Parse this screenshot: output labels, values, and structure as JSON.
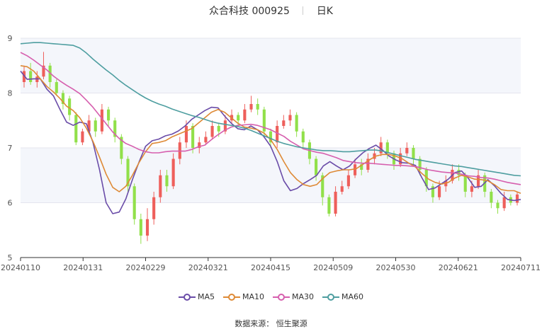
{
  "header": {
    "title": "众合科技 000925",
    "period": "日K"
  },
  "source": {
    "label": "数据来源：",
    "name": "恒生聚源"
  },
  "colors": {
    "up": "#ee5f5b",
    "down": "#91e04a",
    "ma5": "#6a4ca8",
    "ma10": "#de8a36",
    "ma30": "#d65fae",
    "ma60": "#4e9ea0",
    "band": "#f4f6fb",
    "grid": "#e5e5ee"
  },
  "chart_data": {
    "type": "candlestick",
    "title": "众合科技 000925",
    "ylim": [
      5,
      9
    ],
    "y_ticks": [
      "5",
      "6",
      "7",
      "8",
      "9"
    ],
    "x_ticks": [
      "20240110",
      "20240131",
      "20240229",
      "20240321",
      "20240415",
      "20240509",
      "20240530",
      "20240621",
      "20240711"
    ],
    "series": [
      {
        "name": "MA5",
        "values": [
          8.4,
          8.25,
          8.26,
          8.26,
          8.07,
          7.95,
          7.7,
          7.47,
          7.41,
          7.47,
          7.44,
          7.1,
          6.6,
          6.0,
          5.8,
          5.83,
          6.07,
          6.42,
          6.74,
          7.03,
          7.13,
          7.16,
          7.22,
          7.25,
          7.31,
          7.4,
          7.52,
          7.6,
          7.68,
          7.74,
          7.73,
          7.58,
          7.45,
          7.35,
          7.33,
          7.4,
          7.33,
          7.2,
          7.03,
          6.75,
          6.4,
          6.22,
          6.26,
          6.35,
          6.42,
          6.5,
          6.67,
          6.75,
          6.67,
          6.6,
          6.67,
          6.8,
          6.91,
          6.99,
          7.05,
          6.96,
          6.85,
          6.78,
          6.73,
          6.72,
          6.68,
          6.45,
          6.24,
          6.27,
          6.35,
          6.43,
          6.55,
          6.58,
          6.45,
          6.28,
          6.3,
          6.42,
          6.31,
          6.17,
          6.06,
          6.04,
          6.06
        ]
      },
      {
        "name": "MA10",
        "values": [
          8.5,
          8.48,
          8.4,
          8.26,
          8.12,
          8.02,
          7.9,
          7.76,
          7.68,
          7.55,
          7.36,
          7.12,
          6.83,
          6.52,
          6.28,
          6.2,
          6.3,
          6.5,
          6.73,
          6.93,
          7.08,
          7.1,
          7.13,
          7.2,
          7.25,
          7.3,
          7.35,
          7.45,
          7.55,
          7.65,
          7.7,
          7.65,
          7.55,
          7.45,
          7.38,
          7.36,
          7.33,
          7.27,
          7.15,
          6.97,
          6.75,
          6.55,
          6.42,
          6.33,
          6.3,
          6.33,
          6.45,
          6.55,
          6.58,
          6.6,
          6.6,
          6.62,
          6.7,
          6.78,
          6.85,
          6.88,
          6.88,
          6.85,
          6.8,
          6.72,
          6.65,
          6.53,
          6.43,
          6.37,
          6.34,
          6.37,
          6.45,
          6.5,
          6.47,
          6.43,
          6.42,
          6.4,
          6.33,
          6.24,
          6.22,
          6.22,
          6.17
        ]
      },
      {
        "name": "MA30",
        "values": [
          8.74,
          8.68,
          8.6,
          8.51,
          8.42,
          8.31,
          8.22,
          8.14,
          8.07,
          7.99,
          7.87,
          7.74,
          7.59,
          7.44,
          7.29,
          7.17,
          7.08,
          7.03,
          6.97,
          6.93,
          6.91,
          6.91,
          6.93,
          6.94,
          6.94,
          6.94,
          6.97,
          7.02,
          7.05,
          7.15,
          7.24,
          7.32,
          7.38,
          7.41,
          7.42,
          7.43,
          7.41,
          7.37,
          7.33,
          7.27,
          7.21,
          7.12,
          7.05,
          6.98,
          6.95,
          6.92,
          6.9,
          6.86,
          6.82,
          6.77,
          6.75,
          6.73,
          6.72,
          6.72,
          6.71,
          6.7,
          6.69,
          6.68,
          6.68,
          6.67,
          6.66,
          6.63,
          6.6,
          6.58,
          6.56,
          6.55,
          6.54,
          6.52,
          6.49,
          6.48,
          6.46,
          6.45,
          6.43,
          6.4,
          6.37,
          6.35,
          6.33
        ]
      },
      {
        "name": "MA60",
        "values": [
          8.9,
          8.91,
          8.92,
          8.92,
          8.91,
          8.9,
          8.89,
          8.88,
          8.87,
          8.82,
          8.73,
          8.62,
          8.52,
          8.42,
          8.33,
          8.23,
          8.14,
          8.06,
          7.98,
          7.91,
          7.85,
          7.8,
          7.76,
          7.71,
          7.67,
          7.63,
          7.59,
          7.56,
          7.52,
          7.48,
          7.45,
          7.43,
          7.41,
          7.39,
          7.36,
          7.32,
          7.27,
          7.22,
          7.17,
          7.12,
          7.08,
          7.05,
          7.02,
          7.0,
          6.98,
          6.96,
          6.95,
          6.95,
          6.94,
          6.93,
          6.93,
          6.94,
          6.95,
          6.96,
          6.96,
          6.94,
          6.91,
          6.88,
          6.85,
          6.82,
          6.79,
          6.77,
          6.75,
          6.73,
          6.71,
          6.69,
          6.67,
          6.66,
          6.64,
          6.62,
          6.6,
          6.58,
          6.56,
          6.54,
          6.52,
          6.5,
          6.49
        ]
      }
    ],
    "candles": [
      [
        8.2,
        8.4,
        8.5,
        8.1
      ],
      [
        8.4,
        8.2,
        8.55,
        8.15
      ],
      [
        8.2,
        8.3,
        8.4,
        8.1
      ],
      [
        8.3,
        8.5,
        8.75,
        8.25
      ],
      [
        8.5,
        8.2,
        8.55,
        8.1
      ],
      [
        8.2,
        8.0,
        8.25,
        7.95
      ],
      [
        8.0,
        7.8,
        8.05,
        7.7
      ],
      [
        7.9,
        7.6,
        7.95,
        7.5
      ],
      [
        7.6,
        7.1,
        7.65,
        7.05
      ],
      [
        7.1,
        7.3,
        7.35,
        7.05
      ],
      [
        7.3,
        7.5,
        7.6,
        7.25
      ],
      [
        7.5,
        7.3,
        7.55,
        7.2
      ],
      [
        7.3,
        7.7,
        7.8,
        7.25
      ],
      [
        7.7,
        7.5,
        7.75,
        7.4
      ],
      [
        7.5,
        7.2,
        7.55,
        7.1
      ],
      [
        7.2,
        6.8,
        7.25,
        6.7
      ],
      [
        6.8,
        6.3,
        6.85,
        6.2
      ],
      [
        6.3,
        5.7,
        6.35,
        5.6
      ],
      [
        5.7,
        5.4,
        5.8,
        5.25
      ],
      [
        5.4,
        5.7,
        5.9,
        5.3
      ],
      [
        5.7,
        6.1,
        6.2,
        5.6
      ],
      [
        6.1,
        6.5,
        6.6,
        6.0
      ],
      [
        6.5,
        6.3,
        6.6,
        6.2
      ],
      [
        6.3,
        6.8,
        6.9,
        6.25
      ],
      [
        6.8,
        7.1,
        7.2,
        6.7
      ],
      [
        7.1,
        7.4,
        7.5,
        7.0
      ],
      [
        7.4,
        7.0,
        7.45,
        6.9
      ],
      [
        7.0,
        7.1,
        7.2,
        6.9
      ],
      [
        7.1,
        7.2,
        7.3,
        7.05
      ],
      [
        7.2,
        7.4,
        7.5,
        7.15
      ],
      [
        7.4,
        7.3,
        7.45,
        7.2
      ],
      [
        7.3,
        7.5,
        7.6,
        7.25
      ],
      [
        7.5,
        7.6,
        7.7,
        7.45
      ],
      [
        7.6,
        7.5,
        7.65,
        7.4
      ],
      [
        7.5,
        7.7,
        7.8,
        7.45
      ],
      [
        7.7,
        7.8,
        7.95,
        7.65
      ],
      [
        7.8,
        7.7,
        7.9,
        7.6
      ],
      [
        7.7,
        7.3,
        7.75,
        7.2
      ],
      [
        7.3,
        7.1,
        7.35,
        7.0
      ],
      [
        7.1,
        7.4,
        7.5,
        7.0
      ],
      [
        7.4,
        7.5,
        7.6,
        7.35
      ],
      [
        7.5,
        7.6,
        7.7,
        7.4
      ],
      [
        7.6,
        7.3,
        7.65,
        7.2
      ],
      [
        7.3,
        7.1,
        7.35,
        7.0
      ],
      [
        7.1,
        6.8,
        7.15,
        6.7
      ],
      [
        6.8,
        6.5,
        6.85,
        6.4
      ],
      [
        6.5,
        6.1,
        6.55,
        5.95
      ],
      [
        6.1,
        5.8,
        6.15,
        5.75
      ],
      [
        5.8,
        6.2,
        6.3,
        5.75
      ],
      [
        6.2,
        6.3,
        6.4,
        6.15
      ],
      [
        6.3,
        6.5,
        6.6,
        6.25
      ],
      [
        6.5,
        6.7,
        6.8,
        6.45
      ],
      [
        6.7,
        6.6,
        6.8,
        6.5
      ],
      [
        6.6,
        6.8,
        6.9,
        6.55
      ],
      [
        6.8,
        6.9,
        7.0,
        6.7
      ],
      [
        6.9,
        7.1,
        7.2,
        6.85
      ],
      [
        7.1,
        6.9,
        7.15,
        6.8
      ],
      [
        6.9,
        6.7,
        6.95,
        6.6
      ],
      [
        6.7,
        6.9,
        7.0,
        6.65
      ],
      [
        6.9,
        7.0,
        7.1,
        6.85
      ],
      [
        7.0,
        6.8,
        7.05,
        6.7
      ],
      [
        6.8,
        6.6,
        6.85,
        6.5
      ],
      [
        6.6,
        6.3,
        6.65,
        6.2
      ],
      [
        6.3,
        6.1,
        6.35,
        6.0
      ],
      [
        6.1,
        6.3,
        6.4,
        6.05
      ],
      [
        6.3,
        6.4,
        6.5,
        6.2
      ],
      [
        6.4,
        6.6,
        6.7,
        6.35
      ],
      [
        6.6,
        6.5,
        6.7,
        6.4
      ],
      [
        6.5,
        6.2,
        6.55,
        6.1
      ],
      [
        6.2,
        6.3,
        6.4,
        6.1
      ],
      [
        6.3,
        6.5,
        6.6,
        6.25
      ],
      [
        6.5,
        6.2,
        6.55,
        6.1
      ],
      [
        6.2,
        6.0,
        6.25,
        5.9
      ],
      [
        6.0,
        5.9,
        6.05,
        5.8
      ],
      [
        5.9,
        6.1,
        6.2,
        5.85
      ],
      [
        6.1,
        6.0,
        6.15,
        5.95
      ],
      [
        6.0,
        6.15,
        6.2,
        5.95
      ]
    ],
    "grid": true,
    "legend": "bottom-center"
  }
}
